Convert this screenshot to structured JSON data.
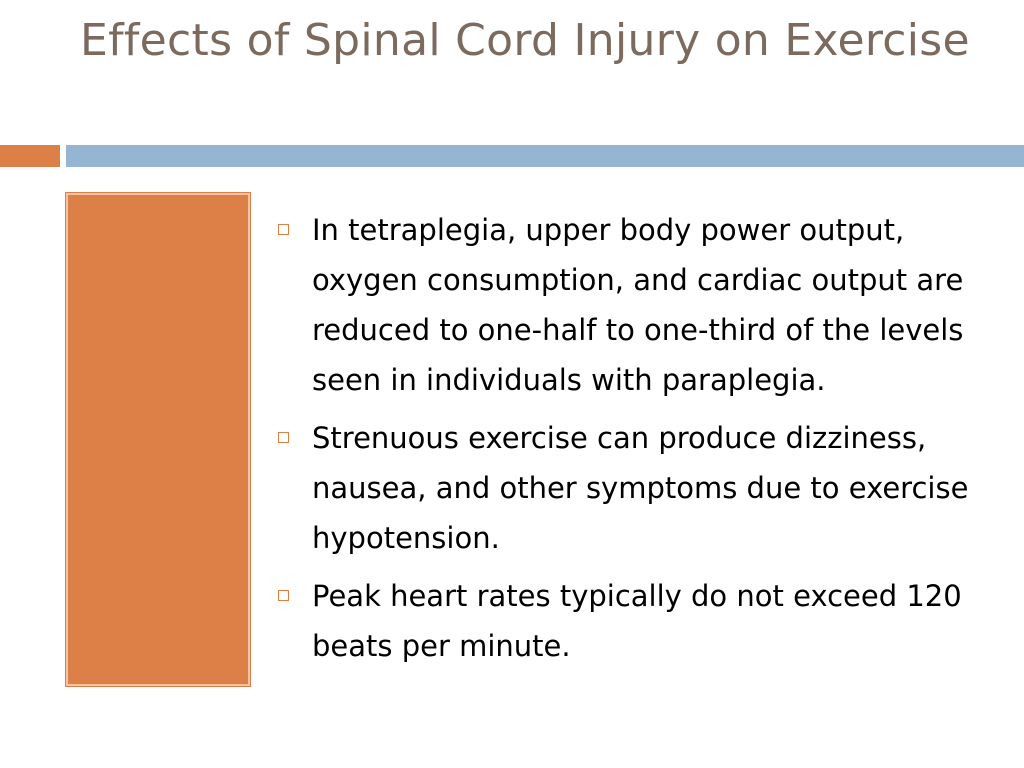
{
  "slide": {
    "title": "Effects of Spinal Cord Injury on Exercise",
    "bullets": [
      "In tetraplegia, upper body power output, oxygen consumption, and cardiac output are reduced to one-half to one-third of the levels seen in individuals with paraplegia.",
      "Strenuous exercise can produce dizziness, nausea, and other symptoms due to exercise hypotension.",
      "Peak heart rates typically do not exceed 120 beats per minute."
    ]
  },
  "colors": {
    "title": "#7b6a5d",
    "accent_orange": "#dd8047",
    "accent_blue": "#94b6d2",
    "text": "#000000"
  },
  "icons": {
    "bullet_marker": "hollow-square-icon"
  }
}
